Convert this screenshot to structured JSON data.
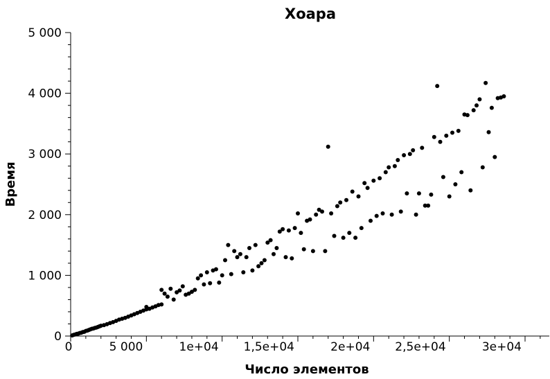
{
  "chart_data": {
    "type": "scatter",
    "title": "Хоара",
    "xlabel": "Число элементов",
    "ylabel": "Время",
    "xlim": [
      0,
      32000
    ],
    "ylim": [
      0,
      5000
    ],
    "x_major_ticks": [
      0,
      5000,
      10000,
      15000,
      20000,
      25000,
      30000
    ],
    "x_tick_labels": [
      "0",
      "5 000",
      "1e+04",
      "1,5e+04",
      "2e+04",
      "2,5e+04",
      "3e+04"
    ],
    "x_minor_step": 1000,
    "y_major_ticks": [
      0,
      1000,
      2000,
      3000,
      4000,
      5000
    ],
    "y_tick_labels": [
      "0",
      "1 000",
      "2 000",
      "3 000",
      "4 000",
      "5 000"
    ],
    "y_minor_step": 200,
    "grid": false,
    "legend": "none",
    "point_color": "#000000",
    "series": [
      {
        "points": [
          [
            100,
            10
          ],
          [
            200,
            20
          ],
          [
            300,
            25
          ],
          [
            400,
            35
          ],
          [
            500,
            40
          ],
          [
            600,
            50
          ],
          [
            700,
            55
          ],
          [
            800,
            65
          ],
          [
            900,
            70
          ],
          [
            1000,
            85
          ],
          [
            1100,
            90
          ],
          [
            1200,
            100
          ],
          [
            1300,
            110
          ],
          [
            1400,
            120
          ],
          [
            1500,
            125
          ],
          [
            1600,
            135
          ],
          [
            1700,
            140
          ],
          [
            1800,
            150
          ],
          [
            1900,
            160
          ],
          [
            2000,
            170
          ],
          [
            2200,
            180
          ],
          [
            2400,
            195
          ],
          [
            2600,
            215
          ],
          [
            2800,
            230
          ],
          [
            3000,
            250
          ],
          [
            3200,
            270
          ],
          [
            3400,
            285
          ],
          [
            3600,
            300
          ],
          [
            3800,
            320
          ],
          [
            4000,
            340
          ],
          [
            4200,
            360
          ],
          [
            4400,
            380
          ],
          [
            4600,
            400
          ],
          [
            4800,
            420
          ],
          [
            5000,
            440
          ],
          [
            5200,
            450
          ],
          [
            5400,
            470
          ],
          [
            5600,
            490
          ],
          [
            5800,
            510
          ],
          [
            6000,
            520
          ],
          [
            5000,
            480
          ],
          [
            6000,
            760
          ],
          [
            6200,
            700
          ],
          [
            6400,
            650
          ],
          [
            6600,
            780
          ],
          [
            6800,
            600
          ],
          [
            7000,
            720
          ],
          [
            7200,
            750
          ],
          [
            7400,
            820
          ],
          [
            7600,
            680
          ],
          [
            7800,
            700
          ],
          [
            8000,
            730
          ],
          [
            8200,
            760
          ],
          [
            8400,
            950
          ],
          [
            8600,
            1000
          ],
          [
            8800,
            850
          ],
          [
            9000,
            1050
          ],
          [
            9200,
            870
          ],
          [
            9400,
            1080
          ],
          [
            9600,
            1100
          ],
          [
            9800,
            880
          ],
          [
            10000,
            1000
          ],
          [
            10200,
            1250
          ],
          [
            10400,
            1500
          ],
          [
            10600,
            1020
          ],
          [
            10800,
            1400
          ],
          [
            11000,
            1300
          ],
          [
            11200,
            1350
          ],
          [
            11400,
            1050
          ],
          [
            11600,
            1300
          ],
          [
            11800,
            1450
          ],
          [
            12000,
            1080
          ],
          [
            12200,
            1500
          ],
          [
            12400,
            1150
          ],
          [
            12600,
            1200
          ],
          [
            12800,
            1250
          ],
          [
            13000,
            1540
          ],
          [
            13200,
            1580
          ],
          [
            13400,
            1350
          ],
          [
            13600,
            1450
          ],
          [
            13800,
            1720
          ],
          [
            14000,
            1760
          ],
          [
            14200,
            1300
          ],
          [
            14400,
            1740
          ],
          [
            14600,
            1280
          ],
          [
            14800,
            1780
          ],
          [
            15000,
            2020
          ],
          [
            15200,
            1700
          ],
          [
            15400,
            1430
          ],
          [
            15600,
            1900
          ],
          [
            15800,
            1920
          ],
          [
            16000,
            1400
          ],
          [
            16200,
            2000
          ],
          [
            16400,
            2080
          ],
          [
            16600,
            2050
          ],
          [
            16800,
            1400
          ],
          [
            17000,
            3120
          ],
          [
            17200,
            2020
          ],
          [
            17400,
            1650
          ],
          [
            17600,
            2140
          ],
          [
            17800,
            2200
          ],
          [
            18000,
            1620
          ],
          [
            18200,
            2240
          ],
          [
            18400,
            1700
          ],
          [
            18600,
            2380
          ],
          [
            18800,
            1620
          ],
          [
            19000,
            2300
          ],
          [
            19200,
            1780
          ],
          [
            19400,
            2520
          ],
          [
            19600,
            2440
          ],
          [
            19800,
            1900
          ],
          [
            20000,
            2560
          ],
          [
            20200,
            1980
          ],
          [
            20400,
            2600
          ],
          [
            20600,
            2020
          ],
          [
            20800,
            2700
          ],
          [
            21000,
            2780
          ],
          [
            21200,
            2000
          ],
          [
            21400,
            2800
          ],
          [
            21600,
            2900
          ],
          [
            21800,
            2050
          ],
          [
            22000,
            2980
          ],
          [
            22200,
            2350
          ],
          [
            22400,
            3000
          ],
          [
            22600,
            3060
          ],
          [
            22800,
            2000
          ],
          [
            23000,
            2350
          ],
          [
            23200,
            3100
          ],
          [
            23400,
            2150
          ],
          [
            23600,
            2150
          ],
          [
            23800,
            2330
          ],
          [
            24000,
            3280
          ],
          [
            24200,
            4120
          ],
          [
            24400,
            3200
          ],
          [
            24600,
            2620
          ],
          [
            24800,
            3300
          ],
          [
            25000,
            2300
          ],
          [
            25200,
            3350
          ],
          [
            25400,
            2500
          ],
          [
            25600,
            3380
          ],
          [
            25800,
            2700
          ],
          [
            26000,
            3650
          ],
          [
            26200,
            3640
          ],
          [
            26400,
            2400
          ],
          [
            26600,
            3720
          ],
          [
            26800,
            3800
          ],
          [
            27000,
            3900
          ],
          [
            27200,
            2780
          ],
          [
            27400,
            4170
          ],
          [
            27600,
            3360
          ],
          [
            27800,
            3760
          ],
          [
            28000,
            2950
          ],
          [
            28200,
            3920
          ],
          [
            28400,
            3930
          ],
          [
            28600,
            3950
          ]
        ]
      }
    ]
  }
}
